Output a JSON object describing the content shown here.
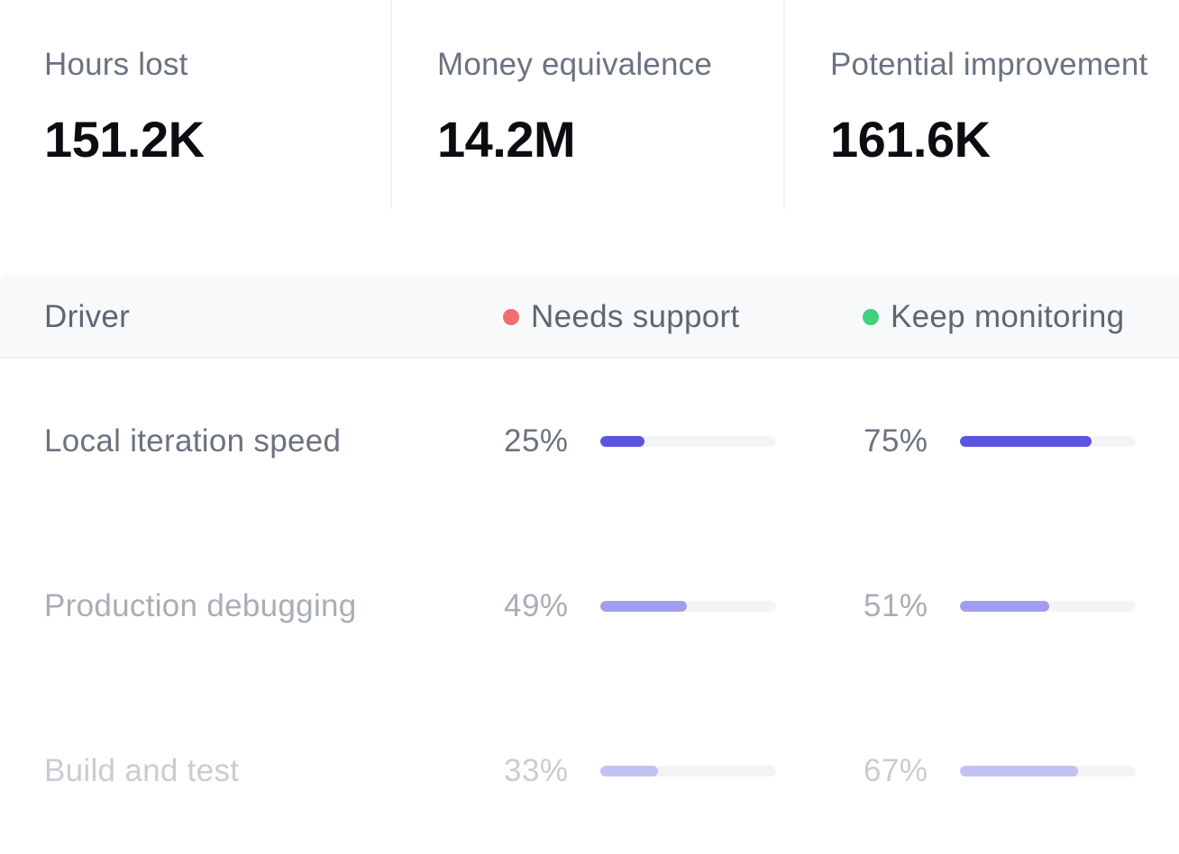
{
  "stats": [
    {
      "label": "Hours lost",
      "value": "151.2K"
    },
    {
      "label": "Money equivalence",
      "value": "14.2M"
    },
    {
      "label": "Potential improvement",
      "value": "161.6K"
    }
  ],
  "table": {
    "columns": {
      "driver": "Driver",
      "needs_support": "Needs support",
      "keep_monitoring": "Keep monitoring"
    },
    "column_colors": {
      "needs_support": "#f26d6d",
      "keep_monitoring": "#3fd17c"
    },
    "rows": [
      {
        "driver": "Local iteration speed",
        "needs_support_label": "25%",
        "needs_support": 25,
        "keep_monitoring_label": "75%",
        "keep_monitoring": 75,
        "text_color": "#6b7280",
        "bar_color": "#5b55e0"
      },
      {
        "driver": "Production debugging",
        "needs_support_label": "49%",
        "needs_support": 49,
        "keep_monitoring_label": "51%",
        "keep_monitoring": 51,
        "text_color": "#a9adb5",
        "bar_color": "#a19ded"
      },
      {
        "driver": "Build and test",
        "needs_support_label": "33%",
        "needs_support": 33,
        "keep_monitoring_label": "67%",
        "keep_monitoring": 67,
        "text_color": "#caccd1",
        "bar_color": "#c4c1f4"
      }
    ]
  }
}
